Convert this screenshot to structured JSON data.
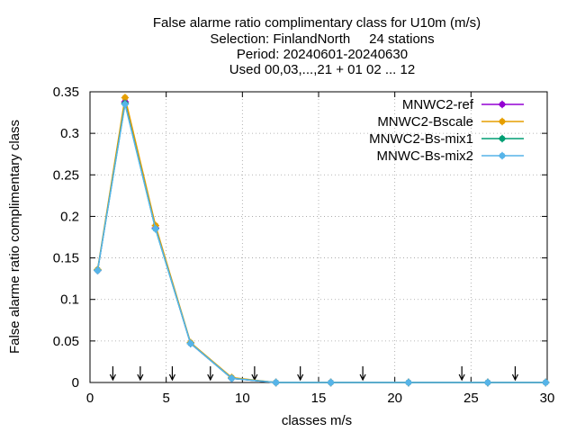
{
  "chart_data": {
    "type": "line",
    "title_lines": [
      "False alarme ratio complimentary class  for U10m (m/s)",
      "Selection: FinlandNorth     24 stations",
      "Period: 20240601-20240630",
      "Used 00,03,...,21 + 01 02 ... 12"
    ],
    "xlabel": "classes m/s",
    "ylabel": "False alarme ratio complimentary class",
    "xlim": [
      0,
      30
    ],
    "ylim": [
      0,
      0.35
    ],
    "xticks": [
      0,
      5,
      10,
      15,
      20,
      25,
      30
    ],
    "yticks": [
      0,
      0.05,
      0.1,
      0.15,
      0.2,
      0.25,
      0.3,
      0.35
    ],
    "ytick_labels": [
      "0",
      "0.05",
      "0.1",
      "0.15",
      "0.2",
      "0.25",
      "0.3",
      "0.35"
    ],
    "grid": true,
    "legend_position": "top-right",
    "class_boundary_arrows_x": [
      1.5,
      3.3,
      5.4,
      7.9,
      10.8,
      13.8,
      17.9,
      24.4,
      27.9
    ],
    "series": [
      {
        "name": "MNWC2-ref",
        "color": "#9400d3",
        "x": [
          0.5,
          2.3,
          4.3,
          6.6,
          9.3,
          12.2,
          15.8,
          20.9,
          26.1,
          29.9
        ],
        "y": [
          0.135,
          0.338,
          0.186,
          0.047,
          0.005,
          0.0,
          0.0,
          0.0,
          0.0,
          0.0
        ]
      },
      {
        "name": "MNWC2-Bscale",
        "color": "#e69f00",
        "x": [
          0.5,
          2.3,
          4.3,
          6.6,
          9.3,
          12.2,
          15.8,
          20.9,
          26.1,
          29.9
        ],
        "y": [
          0.136,
          0.343,
          0.189,
          0.048,
          0.006,
          0.0,
          0.0,
          0.0,
          0.0,
          0.0
        ]
      },
      {
        "name": "MNWC2-Bs-mix1",
        "color": "#009e73",
        "x": [
          0.5,
          2.3,
          4.3,
          6.6,
          9.3,
          12.2,
          15.8,
          20.9,
          26.1,
          29.9
        ],
        "y": [
          0.135,
          0.336,
          0.185,
          0.047,
          0.005,
          0.0,
          0.0,
          0.0,
          0.0,
          0.0
        ]
      },
      {
        "name": "MNWC-Bs-mix2",
        "color": "#56b4e9",
        "x": [
          0.5,
          2.3,
          4.3,
          6.6,
          9.3,
          12.2,
          15.8,
          20.9,
          26.1,
          29.9
        ],
        "y": [
          0.135,
          0.335,
          0.185,
          0.047,
          0.005,
          0.0,
          0.0,
          0.0,
          0.0,
          0.0
        ]
      }
    ]
  }
}
